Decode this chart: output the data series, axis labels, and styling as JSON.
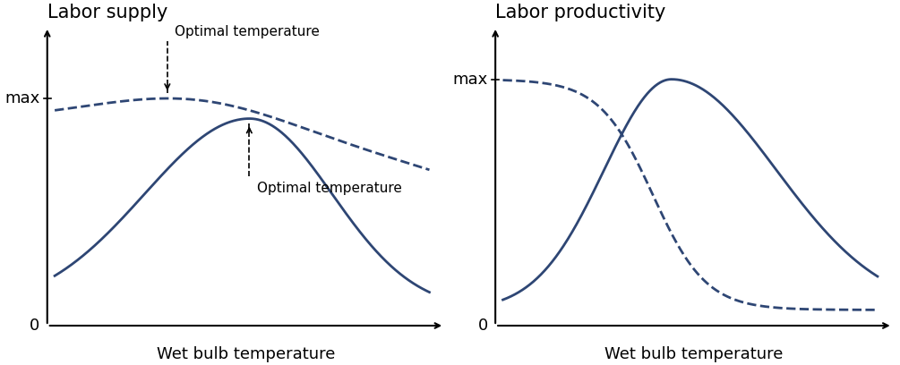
{
  "color": "#2E4674",
  "bg_color": "#ffffff",
  "left_title": "Labor supply",
  "right_title": "Labor productivity",
  "xlabel": "Wet bulb temperature",
  "max_label": "max",
  "zero_label": "0",
  "opt_temp_label": "Optimal temperature",
  "title_fontsize": 15,
  "label_fontsize": 13,
  "tick_fontsize": 13,
  "annot_fontsize": 11
}
